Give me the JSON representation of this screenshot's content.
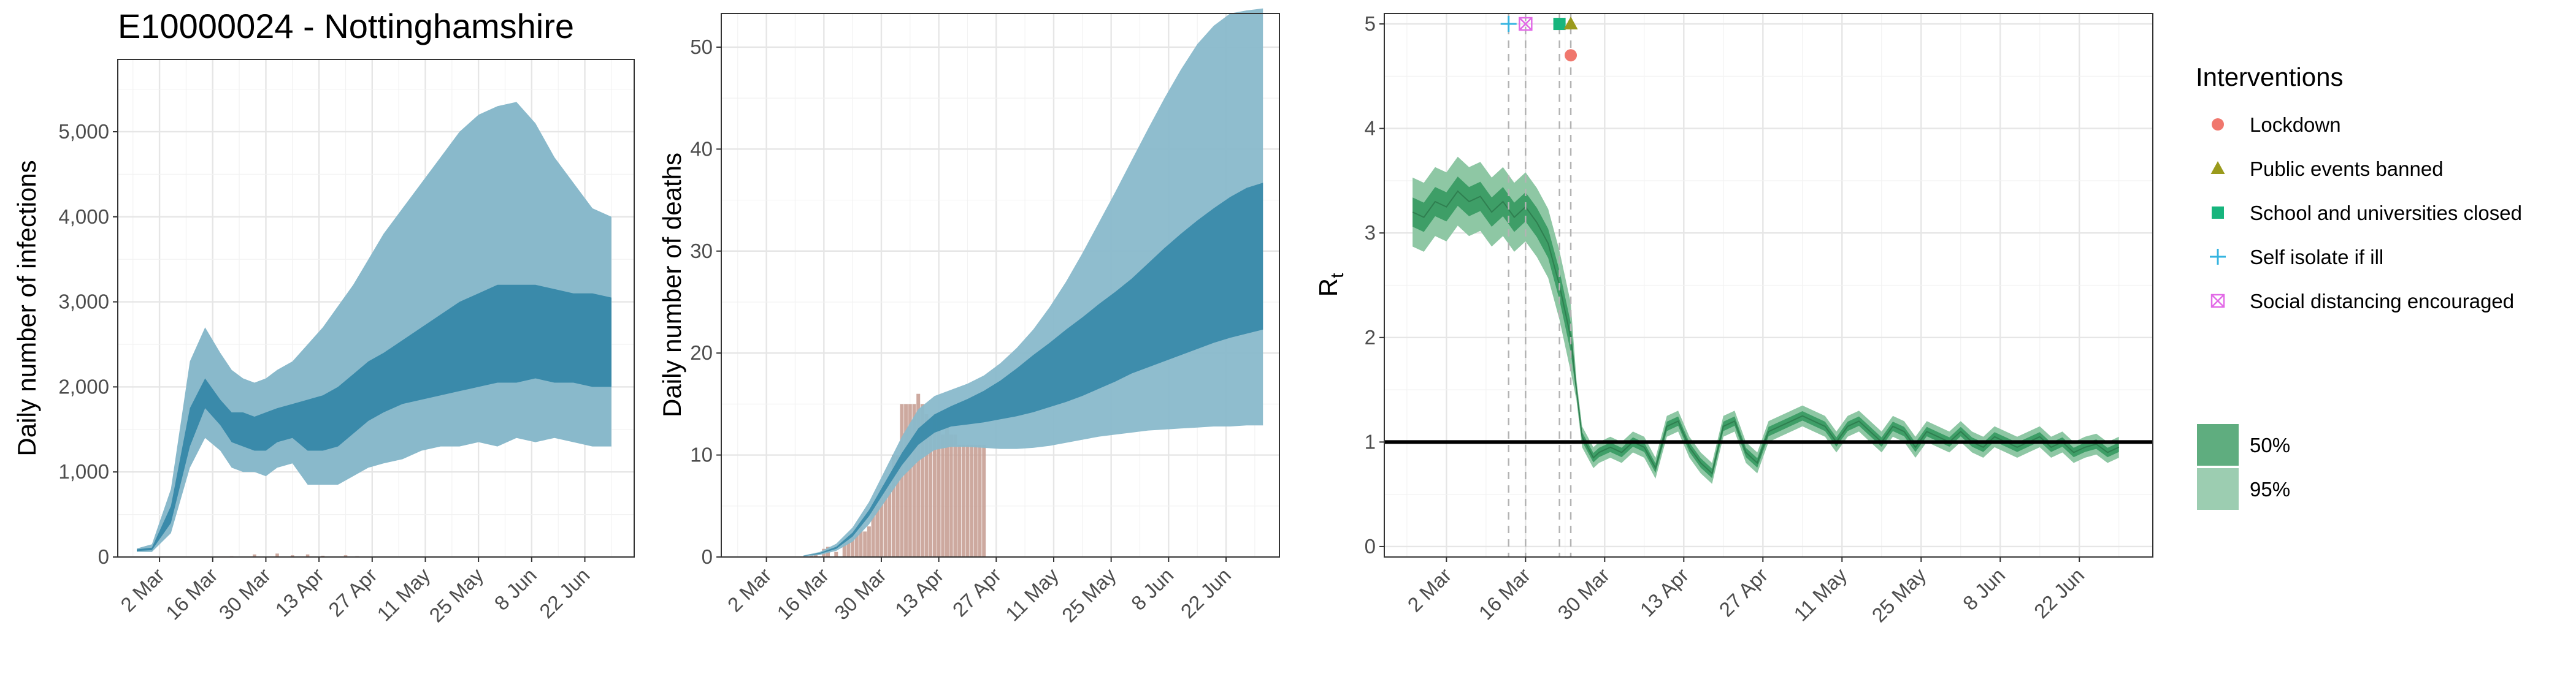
{
  "figure_title": "E10000024 - Nottinghamshire",
  "colors": {
    "infection_ci95": "#89b9cb",
    "infection_ci50": "#3a8aaa",
    "deaths_bar": "#c49a8e",
    "rt_ci95": "#8ec7a4",
    "rt_ci50": "#3e9e67",
    "rt_line": "#2f7f50",
    "lockdown": "#f0776d",
    "public_events": "#9a9a1c",
    "schools": "#17b57d",
    "self_isolate": "#35b4e0",
    "social_distancing": "#e26ae7"
  },
  "legend": {
    "interventions_title": "Interventions",
    "items": [
      {
        "label": "Lockdown",
        "shape": "circle",
        "color": "#f0776d"
      },
      {
        "label": "Public events banned",
        "shape": "triangle",
        "color": "#9a9a1c"
      },
      {
        "label": "School and universities closed",
        "shape": "square",
        "color": "#17b57d"
      },
      {
        "label": "Self isolate if ill",
        "shape": "plus",
        "color": "#35b4e0"
      },
      {
        "label": "Social distancing encouraged",
        "shape": "boxx",
        "color": "#e26ae7"
      }
    ],
    "ci_items": [
      {
        "label": "50%",
        "color": "#5fad7f"
      },
      {
        "label": "95%",
        "color": "#9ccdb1"
      }
    ]
  },
  "chart_data": [
    {
      "type": "area",
      "id": "infections",
      "title": "E10000024 - Nottinghamshire",
      "xlabel": "",
      "ylabel": "Daily number of infections",
      "x_start": "2020-02-20",
      "x_ticks": [
        "2 Mar",
        "16 Mar",
        "30 Mar",
        "13 Apr",
        "27 Apr",
        "11 May",
        "25 May",
        "8 Jun",
        "22 Jun"
      ],
      "x_tick_days": [
        11,
        25,
        39,
        53,
        67,
        81,
        95,
        109,
        123
      ],
      "xlim_days": [
        0,
        136
      ],
      "y_ticks": [
        "0",
        "1,000",
        "2,000",
        "3,000",
        "4,000",
        "5,000"
      ],
      "y_tick_values": [
        0,
        1000,
        2000,
        3000,
        4000,
        5000
      ],
      "ylim": [
        0,
        5850
      ],
      "grid": true,
      "band_days": [
        5,
        9,
        14,
        19,
        23,
        27,
        30,
        33,
        36,
        39,
        42,
        46,
        50,
        54,
        58,
        62,
        66,
        70,
        75,
        80,
        85,
        90,
        95,
        100,
        105,
        110,
        115,
        120,
        125,
        130
      ],
      "ci95_lower": [
        60,
        60,
        280,
        1050,
        1400,
        1250,
        1050,
        1000,
        1000,
        950,
        1050,
        1100,
        850,
        850,
        850,
        950,
        1050,
        1100,
        1150,
        1250,
        1300,
        1300,
        1350,
        1300,
        1400,
        1350,
        1400,
        1350,
        1300,
        1300
      ],
      "ci50_lower": [
        70,
        80,
        400,
        1300,
        1750,
        1550,
        1350,
        1300,
        1250,
        1250,
        1350,
        1400,
        1250,
        1250,
        1300,
        1450,
        1600,
        1700,
        1800,
        1850,
        1900,
        1950,
        2000,
        2050,
        2050,
        2100,
        2050,
        2050,
        2000,
        2000
      ],
      "ci50_upper": [
        90,
        110,
        600,
        1750,
        2100,
        1850,
        1700,
        1700,
        1650,
        1700,
        1750,
        1800,
        1850,
        1900,
        2000,
        2150,
        2300,
        2400,
        2550,
        2700,
        2850,
        3000,
        3100,
        3200,
        3200,
        3200,
        3150,
        3100,
        3100,
        3050
      ],
      "ci95_upper": [
        100,
        150,
        800,
        2300,
        2700,
        2400,
        2200,
        2100,
        2050,
        2100,
        2200,
        2300,
        2500,
        2700,
        2950,
        3200,
        3500,
        3800,
        4100,
        4400,
        4700,
        5000,
        5200,
        5300,
        5350,
        5100,
        4700,
        4400,
        4100,
        4000
      ],
      "observed_days": [
        30,
        36,
        42,
        46,
        50,
        54,
        60,
        63
      ],
      "observed_values": [
        10,
        30,
        40,
        20,
        30,
        15,
        20,
        10
      ]
    },
    {
      "type": "area",
      "id": "deaths",
      "title": "",
      "xlabel": "",
      "ylabel": "Daily number of deaths",
      "x_start": "2020-02-20",
      "x_ticks": [
        "2 Mar",
        "16 Mar",
        "30 Mar",
        "13 Apr",
        "27 Apr",
        "11 May",
        "25 May",
        "8 Jun",
        "22 Jun"
      ],
      "x_tick_days": [
        11,
        25,
        39,
        53,
        67,
        81,
        95,
        109,
        123
      ],
      "xlim_days": [
        0,
        136
      ],
      "y_ticks": [
        "0",
        "10",
        "20",
        "30",
        "40",
        "50"
      ],
      "y_tick_values": [
        0,
        10,
        20,
        30,
        40,
        50
      ],
      "ylim": [
        0,
        53.3
      ],
      "grid": true,
      "band_days": [
        20,
        24,
        28,
        32,
        36,
        40,
        44,
        48,
        52,
        56,
        60,
        64,
        68,
        72,
        76,
        80,
        84,
        88,
        92,
        96,
        100,
        104,
        108,
        112,
        116,
        120,
        124,
        128,
        132
      ],
      "ci95_lower": [
        0.05,
        0.2,
        0.6,
        1.5,
        3.2,
        5.5,
        7.8,
        9.4,
        10.5,
        10.8,
        10.8,
        10.7,
        10.6,
        10.6,
        10.7,
        10.9,
        11.2,
        11.5,
        11.8,
        12.0,
        12.2,
        12.4,
        12.5,
        12.6,
        12.7,
        12.8,
        12.8,
        12.9,
        12.9
      ],
      "ci50_lower": [
        0.1,
        0.3,
        0.8,
        2.0,
        4.0,
        6.5,
        9.0,
        11.0,
        12.2,
        12.8,
        13.0,
        13.2,
        13.5,
        13.8,
        14.2,
        14.7,
        15.2,
        15.8,
        16.5,
        17.2,
        18.0,
        18.6,
        19.2,
        19.8,
        20.4,
        21.0,
        21.5,
        21.9,
        22.3
      ],
      "ci50_upper": [
        0.12,
        0.4,
        1.0,
        2.4,
        4.6,
        7.4,
        10.2,
        12.6,
        14.0,
        14.8,
        15.5,
        16.3,
        17.3,
        18.5,
        19.8,
        21.0,
        22.3,
        23.5,
        24.8,
        26.0,
        27.3,
        28.8,
        30.3,
        31.7,
        33.0,
        34.2,
        35.3,
        36.2,
        36.7
      ],
      "ci95_upper": [
        0.15,
        0.5,
        1.3,
        2.9,
        5.4,
        8.6,
        11.8,
        14.5,
        15.8,
        16.4,
        17.0,
        17.8,
        19.0,
        20.5,
        22.3,
        24.5,
        27.0,
        29.8,
        32.8,
        35.8,
        38.9,
        42.0,
        45.0,
        47.8,
        50.3,
        52.1,
        53.3,
        53.6,
        53.8
      ],
      "observed_days": [
        22,
        23,
        25,
        26,
        28,
        30,
        31,
        32,
        33,
        34,
        35,
        36,
        37,
        38,
        39,
        40,
        41,
        42,
        43,
        44,
        45,
        46,
        47,
        48,
        49,
        50,
        51,
        52,
        53,
        54,
        55,
        56,
        57,
        58,
        59,
        60,
        61,
        62,
        63,
        64
      ],
      "observed_values": [
        0.3,
        0.3,
        0.8,
        1.0,
        0.5,
        1.5,
        1.8,
        2.0,
        2.2,
        3.0,
        2.5,
        3.0,
        5.0,
        5.0,
        7.0,
        7.0,
        7.0,
        10.0,
        10.0,
        15.0,
        15.0,
        15.0,
        15.0,
        16.0,
        15.0,
        14.0,
        12.0,
        14.0,
        14.0,
        12.0,
        13.0,
        12.0,
        12.0,
        11.0,
        11.0,
        11.0,
        11.0,
        11.0,
        11.0,
        11.0
      ]
    },
    {
      "type": "line",
      "id": "rt",
      "title": "",
      "xlabel": "",
      "ylabel": "R",
      "ylabel_subscript": "t",
      "x_start": "2020-02-20",
      "x_ticks": [
        "2 Mar",
        "16 Mar",
        "30 Mar",
        "13 Apr",
        "27 Apr",
        "11 May",
        "25 May",
        "8 Jun",
        "22 Jun"
      ],
      "x_tick_days": [
        11,
        25,
        39,
        53,
        67,
        81,
        95,
        109,
        123
      ],
      "xlim_days": [
        0,
        136
      ],
      "y_ticks": [
        "0",
        "1",
        "2",
        "3",
        "4",
        "5"
      ],
      "y_tick_values": [
        0,
        1,
        2,
        3,
        4,
        5
      ],
      "ylim": [
        -0.1,
        5.1
      ],
      "grid": true,
      "reference_line": 1,
      "band_days": [
        5,
        7,
        9,
        11,
        13,
        15,
        17,
        19,
        21,
        23,
        25,
        27,
        29,
        31,
        32,
        33,
        34,
        35,
        36,
        37,
        38,
        40,
        42,
        44,
        46,
        48,
        50,
        52,
        54,
        56,
        58,
        60,
        62,
        64,
        66,
        68,
        70,
        72,
        74,
        76,
        78,
        80,
        82,
        84,
        86,
        88,
        90,
        92,
        94,
        96,
        98,
        100,
        102,
        104,
        106,
        108,
        110,
        112,
        114,
        116,
        118,
        120,
        122,
        124,
        126,
        128,
        130
      ],
      "rt_median": [
        3.2,
        3.15,
        3.3,
        3.25,
        3.4,
        3.3,
        3.35,
        3.2,
        3.3,
        3.15,
        3.25,
        3.1,
        2.9,
        2.5,
        2.25,
        2.0,
        1.5,
        1.05,
        0.95,
        0.85,
        0.9,
        0.95,
        0.9,
        1.0,
        0.95,
        0.75,
        1.15,
        1.2,
        0.95,
        0.8,
        0.7,
        1.15,
        1.2,
        0.9,
        0.8,
        1.1,
        1.15,
        1.2,
        1.25,
        1.2,
        1.15,
        1.0,
        1.15,
        1.2,
        1.1,
        1.0,
        1.15,
        1.1,
        0.95,
        1.1,
        1.05,
        1.0,
        1.1,
        1.0,
        0.95,
        1.05,
        1.0,
        0.95,
        1.0,
        1.05,
        0.95,
        1.0,
        0.9,
        0.95,
        0.98,
        0.9,
        0.95
      ],
      "interventions": [
        {
          "label": "Self isolate if ill",
          "day": 22,
          "marker_y": 5.0
        },
        {
          "label": "Social distancing encouraged",
          "day": 25,
          "marker_y": 5.0
        },
        {
          "label": "School and universities closed",
          "day": 31,
          "marker_y": 5.0
        },
        {
          "label": "Public events banned",
          "day": 33,
          "marker_y": 5.0
        },
        {
          "label": "Lockdown",
          "day": 33,
          "marker_y": 4.7
        }
      ]
    }
  ]
}
